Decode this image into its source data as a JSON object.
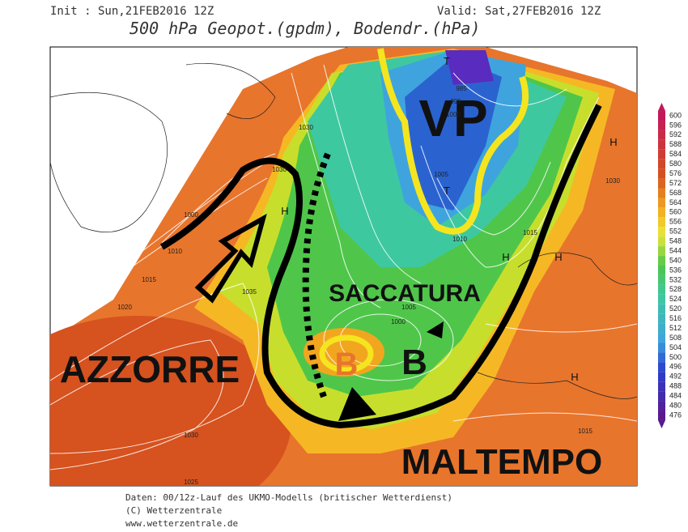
{
  "header": {
    "init": "Init : Sun,21FEB2016 12Z",
    "valid": "Valid: Sat,27FEB2016 12Z",
    "title": "500 hPa Geopot.(gpdm), Bodendr.(hPa)"
  },
  "annotations": {
    "vp": "VP",
    "saccatura": "SACCATURA",
    "azzorre": "AZZORRE",
    "lows": [
      "B",
      "B"
    ],
    "maltempo": "MALTEMPO"
  },
  "centers": [
    "H",
    "H",
    "H",
    "H",
    "H",
    "T",
    "T"
  ],
  "isobar_labels": [
    1030,
    1030,
    1000,
    1010,
    1015,
    1020,
    1035,
    985,
    995,
    1000,
    1005,
    1005,
    1000,
    1015,
    1030,
    1015,
    1030,
    1025,
    1010
  ],
  "colorbar": {
    "labels": [
      600,
      596,
      592,
      588,
      584,
      580,
      576,
      572,
      568,
      564,
      560,
      556,
      552,
      548,
      544,
      540,
      536,
      532,
      528,
      524,
      520,
      516,
      512,
      508,
      504,
      500,
      496,
      492,
      488,
      484,
      480,
      476
    ]
  },
  "footer": {
    "source": "Daten: 00/12z-Lauf des UKMO-Modells (britischer Wetterdienst)",
    "copyright": "(C) Wetterzentrale",
    "url": "www.wetterzentrale.de"
  }
}
